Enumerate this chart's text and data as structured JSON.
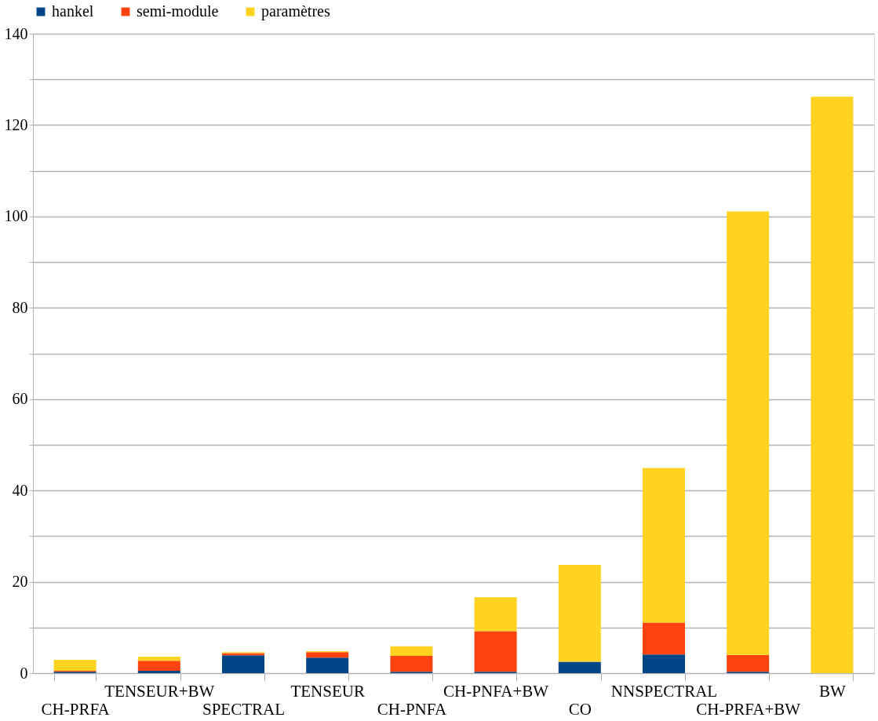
{
  "chart_data": {
    "type": "bar",
    "stacked": true,
    "categories": [
      "CH-PRFA",
      "TENSEUR+BW",
      "SPECTRAL",
      "TENSEUR",
      "CH-PNFA",
      "CH-PNFA+BW",
      "CO",
      "NNSPECTRAL",
      "CH-PRFA+BW",
      "BW"
    ],
    "series": [
      {
        "name": "hankel",
        "color": "#004586",
        "values": [
          0.3,
          0.5,
          3.9,
          3.4,
          0.3,
          0.3,
          2.5,
          4.1,
          0.3,
          0
        ]
      },
      {
        "name": "semi-module",
        "color": "#ff420e",
        "values": [
          0.2,
          2.2,
          0.5,
          1.2,
          3.5,
          8.9,
          0,
          7.0,
          3.7,
          0
        ]
      },
      {
        "name": "paramètres",
        "color": "#ffd320",
        "values": [
          2.4,
          0.9,
          0.2,
          0.2,
          2.1,
          7.4,
          21.2,
          33.8,
          97.1,
          126.2
        ]
      }
    ],
    "ylim": [
      0,
      140
    ],
    "yticks": [
      0,
      {
        "value": 10,
        "label": null
      },
      20,
      {
        "value": 30,
        "label": null
      },
      40,
      {
        "value": 50,
        "label": null
      },
      60,
      {
        "value": 70,
        "label": null
      },
      80,
      {
        "value": 90,
        "label": null
      },
      100,
      {
        "value": 110,
        "label": null
      },
      120,
      {
        "value": 130,
        "label": null
      },
      140
    ],
    "grid": "y",
    "legend": "top"
  }
}
